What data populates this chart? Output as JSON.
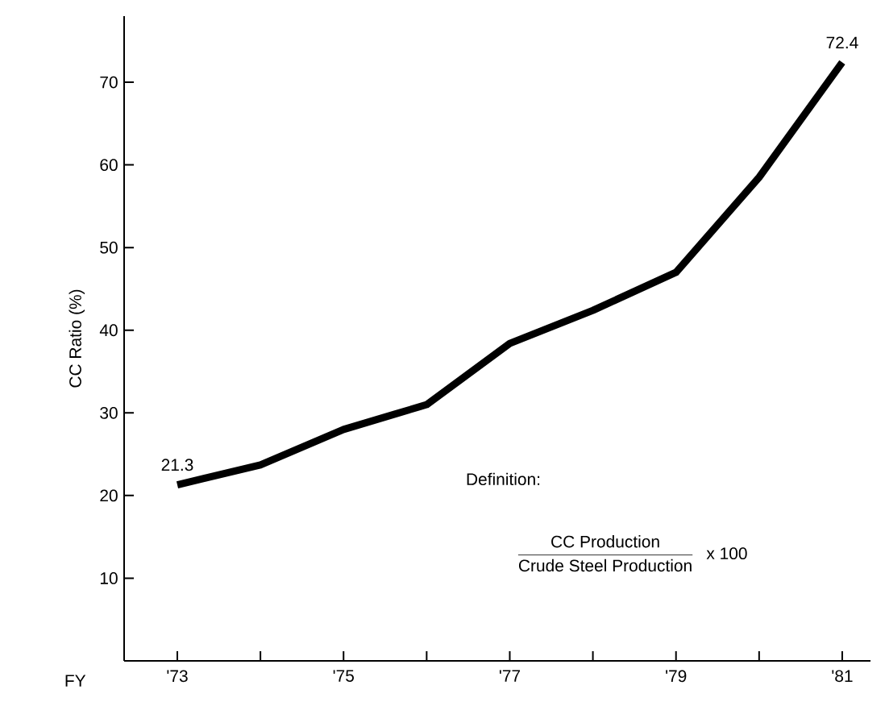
{
  "chart_data": {
    "type": "line",
    "xlabel": "FY",
    "ylabel": "CC Ratio (%)",
    "categories": [
      "'73",
      null,
      "'75",
      null,
      "'77",
      null,
      "'79",
      null,
      "'81"
    ],
    "series": [
      {
        "color": "#000000",
        "values": [
          21.3,
          23.7,
          28,
          31,
          38.4,
          42.4,
          47,
          58.5,
          72.4
        ],
        "value_labels": [
          "21.3",
          null,
          null,
          null,
          null,
          null,
          null,
          null,
          "72.4"
        ]
      }
    ],
    "ylim": [
      0,
      78
    ],
    "yticks": [
      10,
      20,
      30,
      40,
      50,
      60,
      70
    ],
    "grid": false,
    "marker": "none",
    "line_style": "solid",
    "annotations": [
      "Definition:",
      "CC Production",
      "Crude Steel Production",
      "x 100"
    ]
  }
}
